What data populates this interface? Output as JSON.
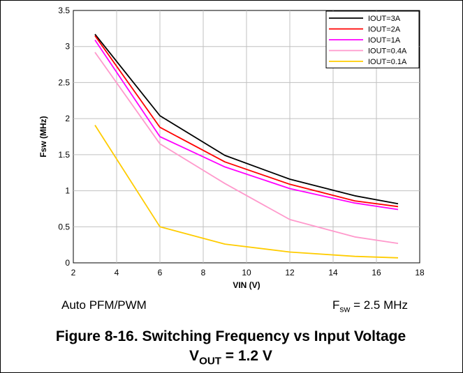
{
  "chart_data": {
    "type": "line",
    "xlabel": "VIN (V)",
    "ylabel": "Fsw (MHz)",
    "xlim": [
      2,
      18
    ],
    "ylim": [
      0,
      3.5
    ],
    "xticks": [
      2,
      4,
      6,
      8,
      10,
      12,
      14,
      16,
      18
    ],
    "yticks": [
      0,
      0.5,
      1,
      1.5,
      2,
      2.5,
      3,
      3.5
    ],
    "ytick_labels": [
      "0",
      "0.5",
      "1",
      "1.5",
      "2",
      "2.5",
      "3",
      "3.5"
    ],
    "grid": true,
    "legend_position": "top-right",
    "x": [
      3,
      6,
      9,
      12,
      15,
      17
    ],
    "series": [
      {
        "name": "IOUT=3A",
        "color": "#000000",
        "values": [
          3.17,
          2.04,
          1.49,
          1.16,
          0.93,
          0.82
        ]
      },
      {
        "name": "IOUT=2A",
        "color": "#ff0000",
        "values": [
          3.15,
          1.88,
          1.4,
          1.09,
          0.86,
          0.78
        ]
      },
      {
        "name": "IOUT=1A",
        "color": "#ff00ff",
        "values": [
          3.09,
          1.75,
          1.33,
          1.03,
          0.83,
          0.74
        ]
      },
      {
        "name": "IOUT=0.4A",
        "color": "#ff99cc",
        "values": [
          2.92,
          1.65,
          1.1,
          0.6,
          0.36,
          0.27
        ]
      },
      {
        "name": "IOUT=0.1A",
        "color": "#ffcc00",
        "values": [
          1.91,
          0.5,
          0.26,
          0.15,
          0.09,
          0.07
        ]
      }
    ]
  },
  "notes": {
    "mode": "Auto PFM/PWM",
    "fsw_symbol": "F",
    "fsw_sub": "sw",
    "fsw_value": " = 2.5 MHz"
  },
  "caption": {
    "title": "Figure 8-16. Switching Frequency vs Input Voltage",
    "vout_symbol": "V",
    "vout_sub": "OUT",
    "vout_value": " = 1.2 V"
  }
}
